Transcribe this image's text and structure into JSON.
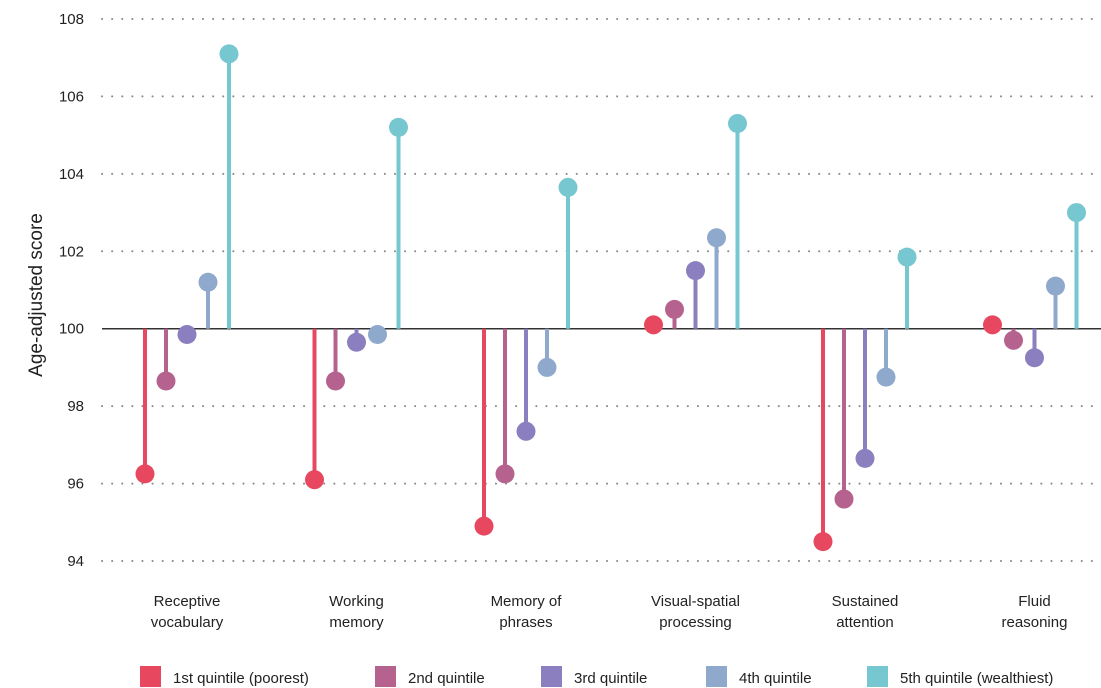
{
  "chart_data": {
    "type": "lollipop",
    "baseline": 100,
    "ylabel": "Age-adjusted score",
    "ylim": [
      94,
      108
    ],
    "yticks": [
      94,
      96,
      98,
      100,
      102,
      104,
      106,
      108
    ],
    "grid": "horizontal-dotted",
    "legend_position": "bottom",
    "categories": [
      [
        "Receptive",
        "vocabulary"
      ],
      [
        "Working",
        "memory"
      ],
      [
        "Memory of",
        "phrases"
      ],
      [
        "Visual-spatial",
        "processing"
      ],
      [
        "Sustained",
        "attention"
      ],
      [
        "Fluid",
        "reasoning"
      ]
    ],
    "series": [
      {
        "name": "1st quintile (poorest)",
        "color": "#e8485f",
        "values": [
          96.25,
          96.1,
          94.9,
          100.1,
          94.5,
          100.1
        ]
      },
      {
        "name": "2nd quintile",
        "color": "#b5628f",
        "values": [
          98.65,
          98.65,
          96.25,
          100.5,
          95.6,
          99.7
        ]
      },
      {
        "name": "3rd quintile",
        "color": "#8b7fbf",
        "values": [
          99.85,
          99.65,
          97.35,
          101.5,
          96.65,
          99.25
        ]
      },
      {
        "name": "4th quintile",
        "color": "#8fa9cc",
        "values": [
          101.2,
          99.85,
          99.0,
          102.35,
          98.75,
          101.1
        ]
      },
      {
        "name": "5th quintile (wealthiest)",
        "color": "#76c7cf",
        "values": [
          107.1,
          105.2,
          103.65,
          105.3,
          101.85,
          103.0
        ]
      }
    ]
  }
}
